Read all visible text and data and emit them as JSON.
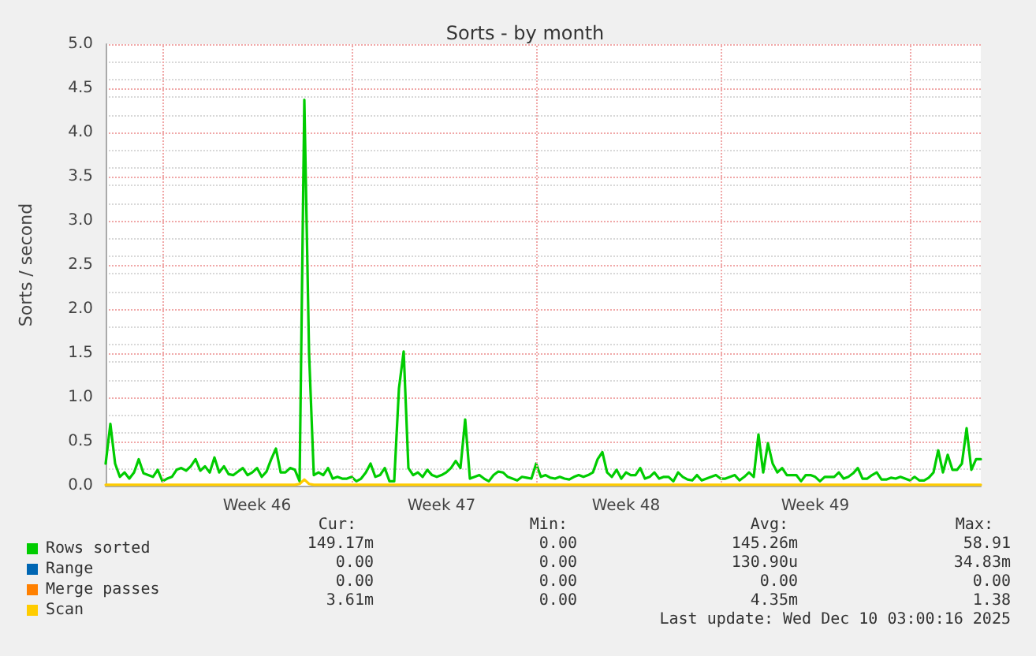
{
  "chart_data": {
    "type": "line",
    "title": "Sorts - by month",
    "ylabel": "Sorts / second",
    "categories": [
      null,
      null,
      null,
      null,
      null,
      null,
      null,
      null,
      null,
      null,
      null,
      null,
      null,
      null,
      null,
      null,
      null,
      null,
      null,
      null,
      null,
      null,
      null,
      null,
      null,
      null,
      null,
      null,
      null,
      null,
      null,
      null,
      "Week 46",
      null,
      null,
      null,
      null,
      null,
      null,
      null,
      null,
      null,
      null,
      null,
      null,
      null,
      null,
      null,
      null,
      null,
      null,
      null,
      null,
      null,
      null,
      null,
      null,
      null,
      null,
      null,
      null,
      null,
      null,
      null,
      null,
      null,
      null,
      null,
      null,
      null,
      null,
      "Week 47",
      null,
      null,
      null,
      null,
      null,
      null,
      null,
      null,
      null,
      null,
      null,
      null,
      null,
      null,
      null,
      null,
      null,
      null,
      null,
      null,
      null,
      null,
      null,
      null,
      null,
      null,
      null,
      null,
      null,
      null,
      null,
      null,
      null,
      null,
      null,
      null,
      null,
      null,
      "Week 48",
      null,
      null,
      null,
      null,
      null,
      null,
      null,
      null,
      null,
      null,
      null,
      null,
      null,
      null,
      null,
      null,
      null,
      null,
      null,
      null,
      null,
      null,
      null,
      null,
      null,
      null,
      null,
      null,
      null,
      null,
      null,
      null,
      null,
      null,
      null,
      null,
      null,
      null,
      null,
      "Week 49",
      null,
      null,
      null,
      null,
      null,
      null,
      null,
      null,
      null,
      null,
      null,
      null,
      null,
      null,
      null,
      null,
      null,
      null,
      null,
      null,
      null,
      null,
      null,
      null,
      null,
      null,
      null,
      null,
      null,
      null,
      null,
      null,
      null,
      null,
      null
    ],
    "ylim": [
      0,
      5
    ],
    "yticks": [
      {
        "value": 0,
        "label": "0.0"
      },
      {
        "value": 0.5,
        "label": "0.5"
      },
      {
        "value": 1,
        "label": "1.0"
      },
      {
        "value": 1.5,
        "label": "1.5"
      },
      {
        "value": 2,
        "label": "2.0"
      },
      {
        "value": 2.5,
        "label": "2.5"
      },
      {
        "value": 3,
        "label": "3.0"
      },
      {
        "value": 3.5,
        "label": "3.5"
      },
      {
        "value": 4,
        "label": "4.0"
      },
      {
        "value": 4.5,
        "label": "4.5"
      },
      {
        "value": 5,
        "label": "5.0"
      }
    ],
    "grid": true,
    "legend": "bottom",
    "marker": "none",
    "line_style": "solid",
    "series": [
      {
        "name": "Rows sorted",
        "color": "#00cc00",
        "values": [
          0.25,
          0.7,
          0.25,
          0.1,
          0.15,
          0.08,
          0.15,
          0.3,
          0.14,
          0.12,
          0.1,
          0.18,
          0.05,
          0.08,
          0.1,
          0.18,
          0.2,
          0.17,
          0.22,
          0.3,
          0.17,
          0.22,
          0.15,
          0.32,
          0.15,
          0.22,
          0.13,
          0.12,
          0.16,
          0.2,
          0.12,
          0.15,
          0.2,
          0.1,
          0.16,
          0.3,
          0.42,
          0.15,
          0.15,
          0.2,
          0.18,
          0.05,
          4.37,
          1.5,
          0.12,
          0.15,
          0.12,
          0.2,
          0.08,
          0.1,
          0.08,
          0.08,
          0.1,
          0.05,
          0.08,
          0.15,
          0.25,
          0.1,
          0.12,
          0.2,
          0.05,
          0.05,
          1.1,
          1.52,
          0.2,
          0.12,
          0.15,
          0.1,
          0.18,
          0.12,
          0.1,
          0.12,
          0.15,
          0.2,
          0.28,
          0.2,
          0.75,
          0.08,
          0.1,
          0.12,
          0.08,
          0.05,
          0.12,
          0.16,
          0.15,
          0.1,
          0.08,
          0.06,
          0.1,
          0.09,
          0.08,
          0.25,
          0.1,
          0.12,
          0.09,
          0.08,
          0.1,
          0.08,
          0.07,
          0.1,
          0.12,
          0.1,
          0.12,
          0.15,
          0.3,
          0.38,
          0.15,
          0.1,
          0.18,
          0.08,
          0.15,
          0.12,
          0.12,
          0.2,
          0.08,
          0.1,
          0.15,
          0.08,
          0.1,
          0.1,
          0.05,
          0.15,
          0.1,
          0.07,
          0.06,
          0.12,
          0.06,
          0.08,
          0.1,
          0.12,
          0.08,
          0.08,
          0.1,
          0.12,
          0.06,
          0.1,
          0.15,
          0.1,
          0.58,
          0.15,
          0.48,
          0.25,
          0.15,
          0.2,
          0.12,
          0.12,
          0.12,
          0.05,
          0.12,
          0.12,
          0.1,
          0.05,
          0.1,
          0.1,
          0.1,
          0.15,
          0.08,
          0.1,
          0.14,
          0.2,
          0.08,
          0.08,
          0.12,
          0.15,
          0.07,
          0.07,
          0.09,
          0.08,
          0.1,
          0.08,
          0.06,
          0.1,
          0.06,
          0.06,
          0.09,
          0.15,
          0.4,
          0.15,
          0.35,
          0.18,
          0.18,
          0.25,
          0.65,
          0.18,
          0.3,
          0.3
        ]
      },
      {
        "name": "Range",
        "color": "#0066b3",
        "values": [
          null,
          null,
          null,
          null,
          null,
          null,
          null,
          null,
          null,
          null,
          null,
          null,
          null,
          null,
          null,
          null,
          null,
          null,
          null,
          null,
          null,
          null,
          null,
          null,
          null,
          null,
          null,
          null,
          null,
          null,
          null,
          null,
          null,
          null,
          null,
          null,
          null,
          null,
          null,
          null,
          null,
          null,
          null,
          null,
          null,
          null,
          null,
          null,
          null,
          null,
          null,
          null,
          null,
          null,
          null,
          null,
          null,
          null,
          null,
          null,
          null,
          null,
          null,
          null,
          null,
          null,
          null,
          null,
          null,
          null,
          null,
          null,
          null,
          null,
          null,
          null,
          null,
          null,
          null,
          null,
          null,
          null,
          null,
          null,
          null,
          null,
          null,
          null,
          null,
          null,
          null,
          null,
          null,
          null,
          null,
          null,
          null,
          null,
          null,
          null,
          null,
          null,
          null,
          null,
          null,
          null,
          null,
          null,
          null,
          null,
          null,
          null,
          null,
          null,
          null,
          null,
          null,
          null,
          null,
          null,
          null,
          null,
          null,
          null,
          null,
          null,
          null,
          null,
          null,
          null,
          null,
          null,
          null,
          null,
          null,
          null,
          null,
          null,
          null,
          null,
          null,
          null,
          null,
          null,
          null,
          null,
          null,
          null,
          null,
          null,
          null,
          null,
          null,
          null,
          null,
          null,
          null,
          null,
          null,
          null,
          null,
          null,
          null,
          null,
          null,
          null,
          null,
          null,
          null,
          null,
          null,
          null,
          null,
          null,
          null,
          null,
          null,
          null,
          null,
          null,
          null,
          null,
          null,
          null,
          null,
          null
        ]
      },
      {
        "name": "Merge passes",
        "color": "#ff8000",
        "values": [
          null,
          null,
          null,
          null,
          null,
          null,
          null,
          null,
          null,
          null,
          null,
          null,
          null,
          null,
          null,
          null,
          null,
          null,
          null,
          null,
          null,
          null,
          null,
          null,
          null,
          null,
          null,
          null,
          null,
          null,
          null,
          null,
          null,
          null,
          null,
          null,
          null,
          null,
          null,
          null,
          null,
          null,
          null,
          null,
          null,
          null,
          null,
          null,
          null,
          null,
          null,
          null,
          null,
          null,
          null,
          null,
          null,
          null,
          null,
          null,
          null,
          null,
          null,
          null,
          null,
          null,
          null,
          null,
          null,
          null,
          null,
          null,
          null,
          null,
          null,
          null,
          null,
          null,
          null,
          null,
          null,
          null,
          null,
          null,
          null,
          null,
          null,
          null,
          null,
          null,
          null,
          null,
          null,
          null,
          null,
          null,
          null,
          null,
          null,
          null,
          null,
          null,
          null,
          null,
          null,
          null,
          null,
          null,
          null,
          null,
          null,
          null,
          null,
          null,
          null,
          null,
          null,
          null,
          null,
          null,
          null,
          null,
          null,
          null,
          null,
          null,
          null,
          null,
          null,
          null,
          null,
          null,
          null,
          null,
          null,
          null,
          null,
          null,
          null,
          null,
          null,
          null,
          null,
          null,
          null,
          null,
          null,
          null,
          null,
          null,
          null,
          null,
          null,
          null,
          null,
          null,
          null,
          null,
          null,
          null,
          null,
          null,
          null,
          null,
          null,
          null,
          null,
          null,
          null,
          null,
          null,
          null,
          null,
          null,
          null,
          null,
          null,
          null,
          null,
          null,
          null,
          null,
          null,
          null,
          null,
          null
        ]
      },
      {
        "name": "Scan",
        "color": "#ffcc00",
        "values": [
          0.01,
          0.01,
          0.01,
          0.01,
          0.01,
          0.01,
          0.01,
          0.01,
          0.01,
          0.01,
          0.01,
          0.01,
          0.01,
          0.01,
          0.01,
          0.01,
          0.01,
          0.01,
          0.01,
          0.01,
          0.01,
          0.01,
          0.01,
          0.01,
          0.01,
          0.01,
          0.01,
          0.01,
          0.01,
          0.01,
          0.01,
          0.01,
          0.01,
          0.01,
          0.01,
          0.01,
          0.01,
          0.01,
          0.01,
          0.01,
          0.01,
          0.02,
          0.07,
          0.02,
          0.01,
          0.01,
          0.01,
          0.01,
          0.01,
          0.01,
          0.01,
          0.01,
          0.01,
          0.01,
          0.01,
          0.01,
          0.01,
          0.01,
          0.01,
          0.01,
          0.01,
          0.01,
          0.01,
          0.01,
          0.01,
          0.01,
          0.01,
          0.01,
          0.01,
          0.01,
          0.01,
          0.01,
          0.01,
          0.01,
          0.01,
          0.01,
          0.01,
          0.01,
          0.01,
          0.01,
          0.01,
          0.01,
          0.01,
          0.01,
          0.01,
          0.01,
          0.01,
          0.01,
          0.01,
          0.01,
          0.01,
          0.01,
          0.01,
          0.01,
          0.01,
          0.01,
          0.01,
          0.01,
          0.01,
          0.01,
          0.01,
          0.01,
          0.01,
          0.01,
          0.01,
          0.01,
          0.01,
          0.01,
          0.01,
          0.01,
          0.01,
          0.01,
          0.01,
          0.01,
          0.01,
          0.01,
          0.01,
          0.01,
          0.01,
          0.01,
          0.01,
          0.01,
          0.01,
          0.01,
          0.01,
          0.01,
          0.01,
          0.01,
          0.01,
          0.01,
          0.01,
          0.01,
          0.01,
          0.01,
          0.01,
          0.01,
          0.01,
          0.01,
          0.01,
          0.01,
          0.01,
          0.01,
          0.01,
          0.01,
          0.01,
          0.01,
          0.01,
          0.01,
          0.01,
          0.01,
          0.01,
          0.01,
          0.01,
          0.01,
          0.01,
          0.01,
          0.01,
          0.01,
          0.01,
          0.01,
          0.01,
          0.01,
          0.01,
          0.01,
          0.01,
          0.01,
          0.01,
          0.01,
          0.01,
          0.01,
          0.01,
          0.01,
          0.01,
          0.01,
          0.01,
          0.01,
          0.01,
          0.01,
          0.01,
          0.01,
          0.01,
          0.01,
          0.01,
          0.01,
          0.01,
          0.01
        ]
      }
    ],
    "annotations": [
      "Cur:",
      "Min:",
      "Avg:",
      "Max:",
      "149.17m",
      "0.00",
      "145.26m",
      "58.91",
      "0.00",
      "0.00",
      "130.90u",
      "34.83m",
      "0.00",
      "0.00",
      "0.00",
      "0.00",
      "3.61m",
      "0.00",
      "4.35m",
      "1.38",
      "Last update: Wed Dec 10 03:00:16 2025"
    ]
  }
}
